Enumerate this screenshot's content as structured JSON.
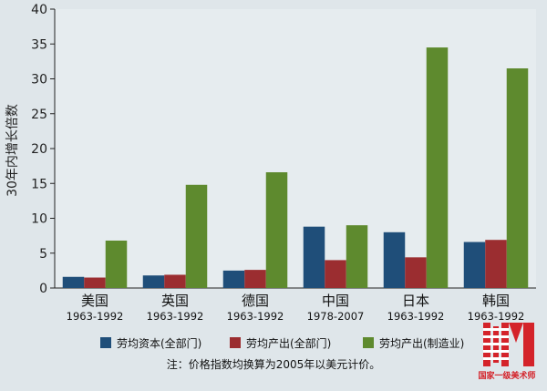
{
  "chart_data": {
    "type": "bar",
    "ylabel": "30年内增长倍数",
    "ylim": [
      0,
      40
    ],
    "yticks": [
      "0",
      "5",
      "10",
      "15",
      "20",
      "25",
      "30",
      "35",
      "40"
    ],
    "grid": false,
    "legend_position": "bottom",
    "categories": [
      {
        "name": "美国",
        "period": "1963-1992"
      },
      {
        "name": "英国",
        "period": "1963-1992"
      },
      {
        "name": "德国",
        "period": "1963-1992"
      },
      {
        "name": "中国",
        "period": "1978-2007"
      },
      {
        "name": "日本",
        "period": "1963-1992"
      },
      {
        "name": "韩国",
        "period": "1963-1992"
      }
    ],
    "series": [
      {
        "name": "劳均资本(全部门)",
        "color": "#1f4e79",
        "values": [
          1.6,
          1.8,
          2.5,
          8.8,
          8.0,
          6.6
        ]
      },
      {
        "name": "劳均产出(全部门)",
        "color": "#9b2d30",
        "values": [
          1.5,
          1.9,
          2.6,
          4.0,
          4.4,
          6.9
        ]
      },
      {
        "name": "劳均产出(制造业)",
        "color": "#5e8a2e",
        "values": [
          6.8,
          14.8,
          16.6,
          9.0,
          34.5,
          31.5
        ]
      }
    ],
    "note": "注：价格指数均换算为2005年以美元计价。"
  },
  "watermark": {
    "text": "国家一级美术师",
    "color": "#d4232a"
  }
}
